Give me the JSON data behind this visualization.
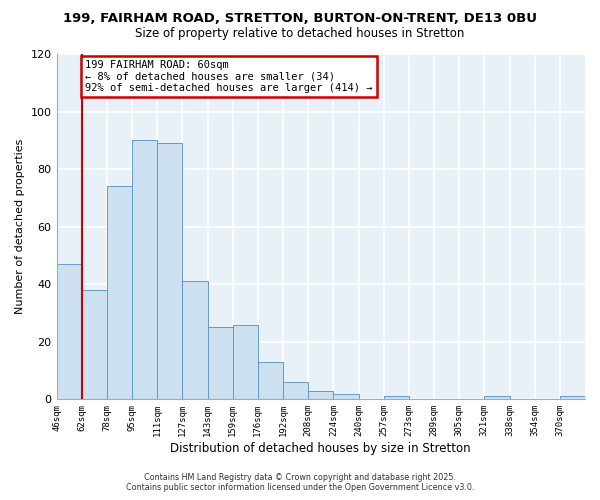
{
  "title": "199, FAIRHAM ROAD, STRETTON, BURTON-ON-TRENT, DE13 0BU",
  "subtitle": "Size of property relative to detached houses in Stretton",
  "xlabel": "Distribution of detached houses by size in Stretton",
  "ylabel": "Number of detached properties",
  "bin_labels": [
    "46sqm",
    "62sqm",
    "78sqm",
    "95sqm",
    "111sqm",
    "127sqm",
    "143sqm",
    "159sqm",
    "176sqm",
    "192sqm",
    "208sqm",
    "224sqm",
    "240sqm",
    "257sqm",
    "273sqm",
    "289sqm",
    "305sqm",
    "321sqm",
    "338sqm",
    "354sqm",
    "370sqm"
  ],
  "bar_heights": [
    47,
    38,
    74,
    90,
    89,
    41,
    25,
    26,
    13,
    6,
    3,
    2,
    0,
    1,
    0,
    0,
    0,
    1,
    0,
    0,
    1
  ],
  "bar_color": "#cce0f0",
  "bar_edge_color": "#6699cc",
  "vline_x": 1,
  "vline_color": "#cc0000",
  "ylim": [
    0,
    120
  ],
  "yticks": [
    0,
    20,
    40,
    60,
    80,
    100,
    120
  ],
  "annotation_text": "199 FAIRHAM ROAD: 60sqm\n← 8% of detached houses are smaller (34)\n92% of semi-detached houses are larger (414) →",
  "annotation_box_color": "#ffffff",
  "annotation_box_edgecolor": "#cc0000",
  "footer_line1": "Contains HM Land Registry data © Crown copyright and database right 2025.",
  "footer_line2": "Contains public sector information licensed under the Open Government Licence v3.0.",
  "background_color": "#ffffff",
  "plot_bg_color": "#e8f0f8",
  "grid_color": "#ffffff"
}
